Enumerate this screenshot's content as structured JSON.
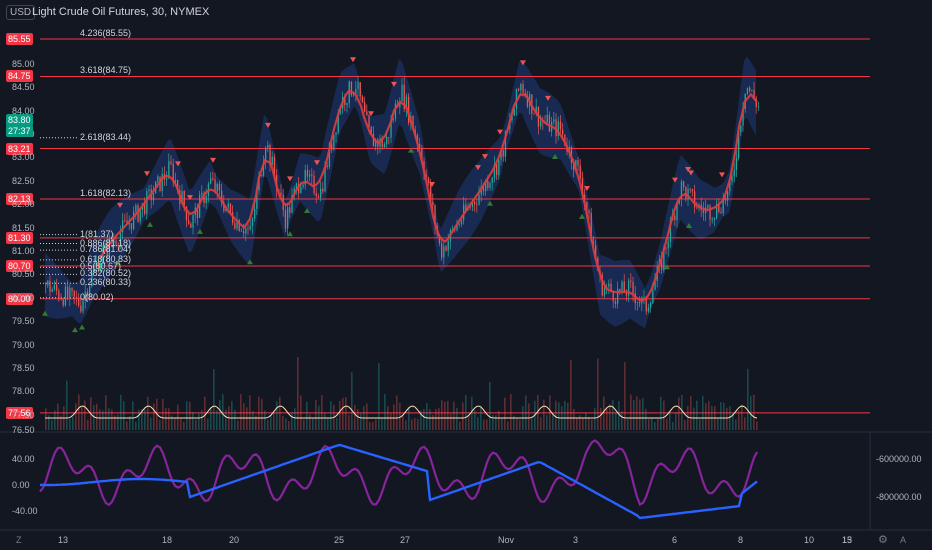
{
  "header": {
    "title": "Light Crude Oil Futures, 30, NYMEX",
    "currency": "USD"
  },
  "price_axis": {
    "ticks": [
      "85.00",
      "84.50",
      "84.00",
      "83.50",
      "83.00",
      "82.50",
      "82.00",
      "81.50",
      "81.00",
      "80.50",
      "80.00",
      "79.50",
      "79.00",
      "78.50",
      "78.00",
      "77.50"
    ],
    "current_price": "83.80",
    "countdown": "27:37",
    "partial_bottom_label": "76.50"
  },
  "levels": [
    {
      "label": "85.55",
      "fib": "4.236(85.55)"
    },
    {
      "label": "84.75",
      "fib": "3.618(84.75)"
    },
    {
      "label": "83.21",
      "fib": ""
    },
    {
      "label": "82.13",
      "fib": "1.618(82.13)"
    },
    {
      "label": "81.30",
      "fib": ""
    },
    {
      "label": "80.70",
      "fib": ""
    },
    {
      "label": "80.00",
      "fib": ""
    },
    {
      "label": "77.56",
      "fib": ""
    }
  ],
  "fib_extra": [
    "2.618(83.44)",
    "1(81.37)",
    "0.886(81.18)",
    "0.786(81.04)",
    "0.618(80.83)",
    "0.5(80.67)",
    "0.382(80.52)",
    "0.236(80.33)",
    "0(80.02)"
  ],
  "oscillator_axis": {
    "left_ticks": [
      "40.00",
      "0.00",
      "-40.00"
    ],
    "right_ticks": [
      "-600000.00",
      "-800000.00"
    ]
  },
  "time_axis": {
    "labels": [
      "13",
      "18",
      "20",
      "25",
      "27",
      "Nov",
      "3",
      "6",
      "8",
      "10",
      "13",
      "15"
    ]
  },
  "corner_icons": {
    "left": "Z",
    "settings": "gear-icon",
    "scale": "A"
  },
  "colors": {
    "background": "#131722",
    "level_line": "#f23645",
    "ma_line": "#e03c3c",
    "band_fill": "#1e3a78",
    "candle_up": "#26a69a",
    "candle_down": "#ef5350",
    "osc_purple": "#9c27b0",
    "osc_blue": "#2962ff",
    "volume_osc": "#ffe0b2"
  }
}
